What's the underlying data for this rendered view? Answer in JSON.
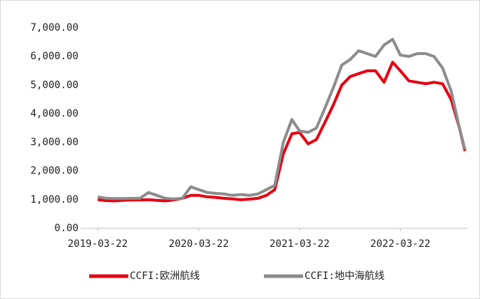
{
  "chart_data": {
    "type": "line",
    "x": [
      "2019-03-22",
      "2019-04-22",
      "2019-05-22",
      "2019-06-22",
      "2019-07-22",
      "2019-08-22",
      "2019-09-22",
      "2019-10-22",
      "2019-11-22",
      "2019-12-22",
      "2020-01-22",
      "2020-02-22",
      "2020-03-22",
      "2020-04-22",
      "2020-05-22",
      "2020-06-22",
      "2020-07-22",
      "2020-08-22",
      "2020-09-22",
      "2020-10-22",
      "2020-11-22",
      "2020-12-22",
      "2021-01-22",
      "2021-02-22",
      "2021-03-22",
      "2021-04-22",
      "2021-05-22",
      "2021-06-22",
      "2021-07-22",
      "2021-08-22",
      "2021-09-22",
      "2021-10-22",
      "2021-11-22",
      "2021-12-22",
      "2022-01-22",
      "2022-02-22",
      "2022-03-22",
      "2022-04-22",
      "2022-05-22",
      "2022-06-22",
      "2022-07-22",
      "2022-08-22",
      "2022-09-22",
      "2022-10-22",
      "2022-11-11"
    ],
    "series": [
      {
        "name": "CCFI:欧洲航线",
        "color": "#e60012",
        "values": [
          1000,
          970,
          960,
          980,
          990,
          990,
          1000,
          980,
          960,
          990,
          1050,
          1150,
          1150,
          1100,
          1080,
          1050,
          1030,
          1000,
          1020,
          1050,
          1150,
          1350,
          2600,
          3300,
          3350,
          2950,
          3100,
          3700,
          4300,
          5000,
          5300,
          5400,
          5500,
          5500,
          5100,
          5800,
          5500,
          5150,
          5100,
          5050,
          5100,
          5050,
          4500,
          3500,
          2700
        ]
      },
      {
        "name": "CCFI:地中海航线",
        "color": "#8c8c8c",
        "values": [
          1100,
          1050,
          1040,
          1040,
          1050,
          1050,
          1250,
          1150,
          1050,
          1030,
          1050,
          1450,
          1350,
          1250,
          1220,
          1200,
          1150,
          1180,
          1150,
          1200,
          1350,
          1500,
          3000,
          3800,
          3400,
          3350,
          3500,
          4200,
          4900,
          5700,
          5900,
          6200,
          6100,
          6000,
          6400,
          6600,
          6050,
          6000,
          6100,
          6100,
          6000,
          5600,
          4800,
          3500,
          2750
        ]
      }
    ],
    "xlim": [
      "2019-01-19",
      "2022-11-19"
    ],
    "xticks": [
      "2019-03-22",
      "2020-03-22",
      "2021-03-22",
      "2022-03-22"
    ],
    "ylim": [
      0,
      7000
    ],
    "yticks": [
      {
        "value": 0,
        "label": "0.00"
      },
      {
        "value": 1000,
        "label": "1,000.00"
      },
      {
        "value": 2000,
        "label": "2,000.00"
      },
      {
        "value": 3000,
        "label": "3,000.00"
      },
      {
        "value": 4000,
        "label": "4,000.00"
      },
      {
        "value": 5000,
        "label": "5,000.00"
      },
      {
        "value": 6000,
        "label": "6,000.00"
      },
      {
        "value": 7000,
        "label": "7,000.00"
      }
    ],
    "legend": "bottom"
  }
}
